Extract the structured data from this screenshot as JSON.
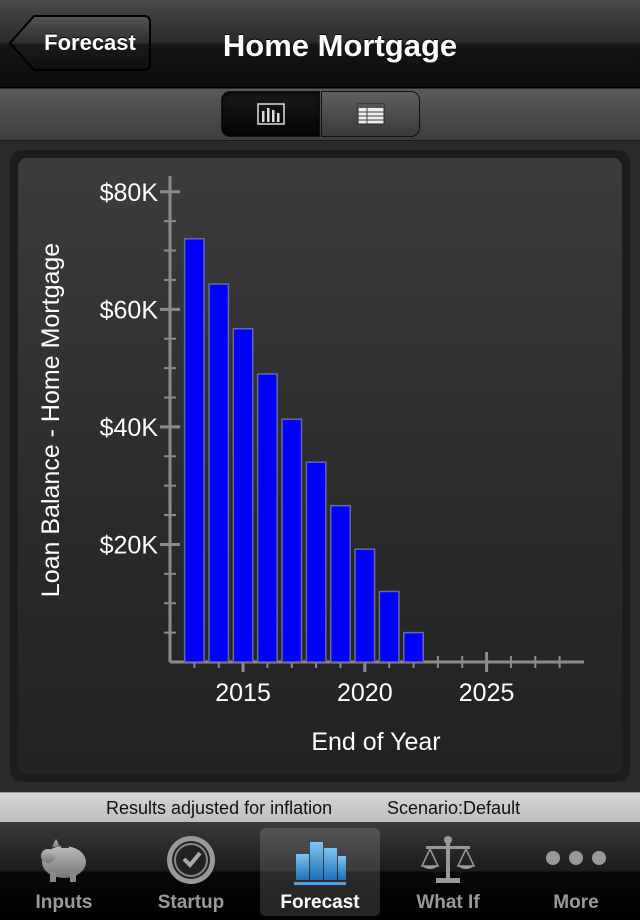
{
  "nav": {
    "back_label": "Forecast",
    "title": "Home Mortgage"
  },
  "segments": [
    {
      "icon": "bar-chart-icon",
      "selected": true
    },
    {
      "icon": "table-icon",
      "selected": false
    }
  ],
  "chart_data": {
    "type": "bar",
    "x": [
      2013,
      2014,
      2015,
      2016,
      2017,
      2018,
      2019,
      2020,
      2021,
      2022
    ],
    "values": [
      72000,
      64300,
      56700,
      49000,
      41300,
      34000,
      26600,
      19200,
      12000,
      5000
    ],
    "xlabel": "End of Year",
    "ylabel": "Loan Balance - Home Mortgage",
    "ylim": [
      0,
      82000
    ],
    "xlim": [
      2012,
      2029
    ],
    "yticks": [
      20000,
      40000,
      60000,
      80000
    ],
    "ytick_labels": [
      "$20K",
      "$40K",
      "$60K",
      "$80K"
    ],
    "xticks": [
      2015,
      2020,
      2025
    ],
    "xtick_labels": [
      "2015",
      "2020",
      "2025"
    ],
    "bar_color": "#0000ff",
    "grid": false,
    "legend": "none"
  },
  "status": {
    "inflation_text": "Results adjusted for inflation",
    "scenario_text": "Scenario:Default"
  },
  "tabs": [
    {
      "label": "Inputs",
      "icon": "piggy-bank-icon",
      "active": false
    },
    {
      "label": "Startup",
      "icon": "clock-icon",
      "active": false
    },
    {
      "label": "Forecast",
      "icon": "bar-chart-icon",
      "active": true
    },
    {
      "label": "What If",
      "icon": "scales-icon",
      "active": false
    },
    {
      "label": "More",
      "icon": "more-dots-icon",
      "active": false
    }
  ],
  "colors": {
    "accent_blue": "#4aa3e8",
    "bar_fill": "#0000ff"
  }
}
